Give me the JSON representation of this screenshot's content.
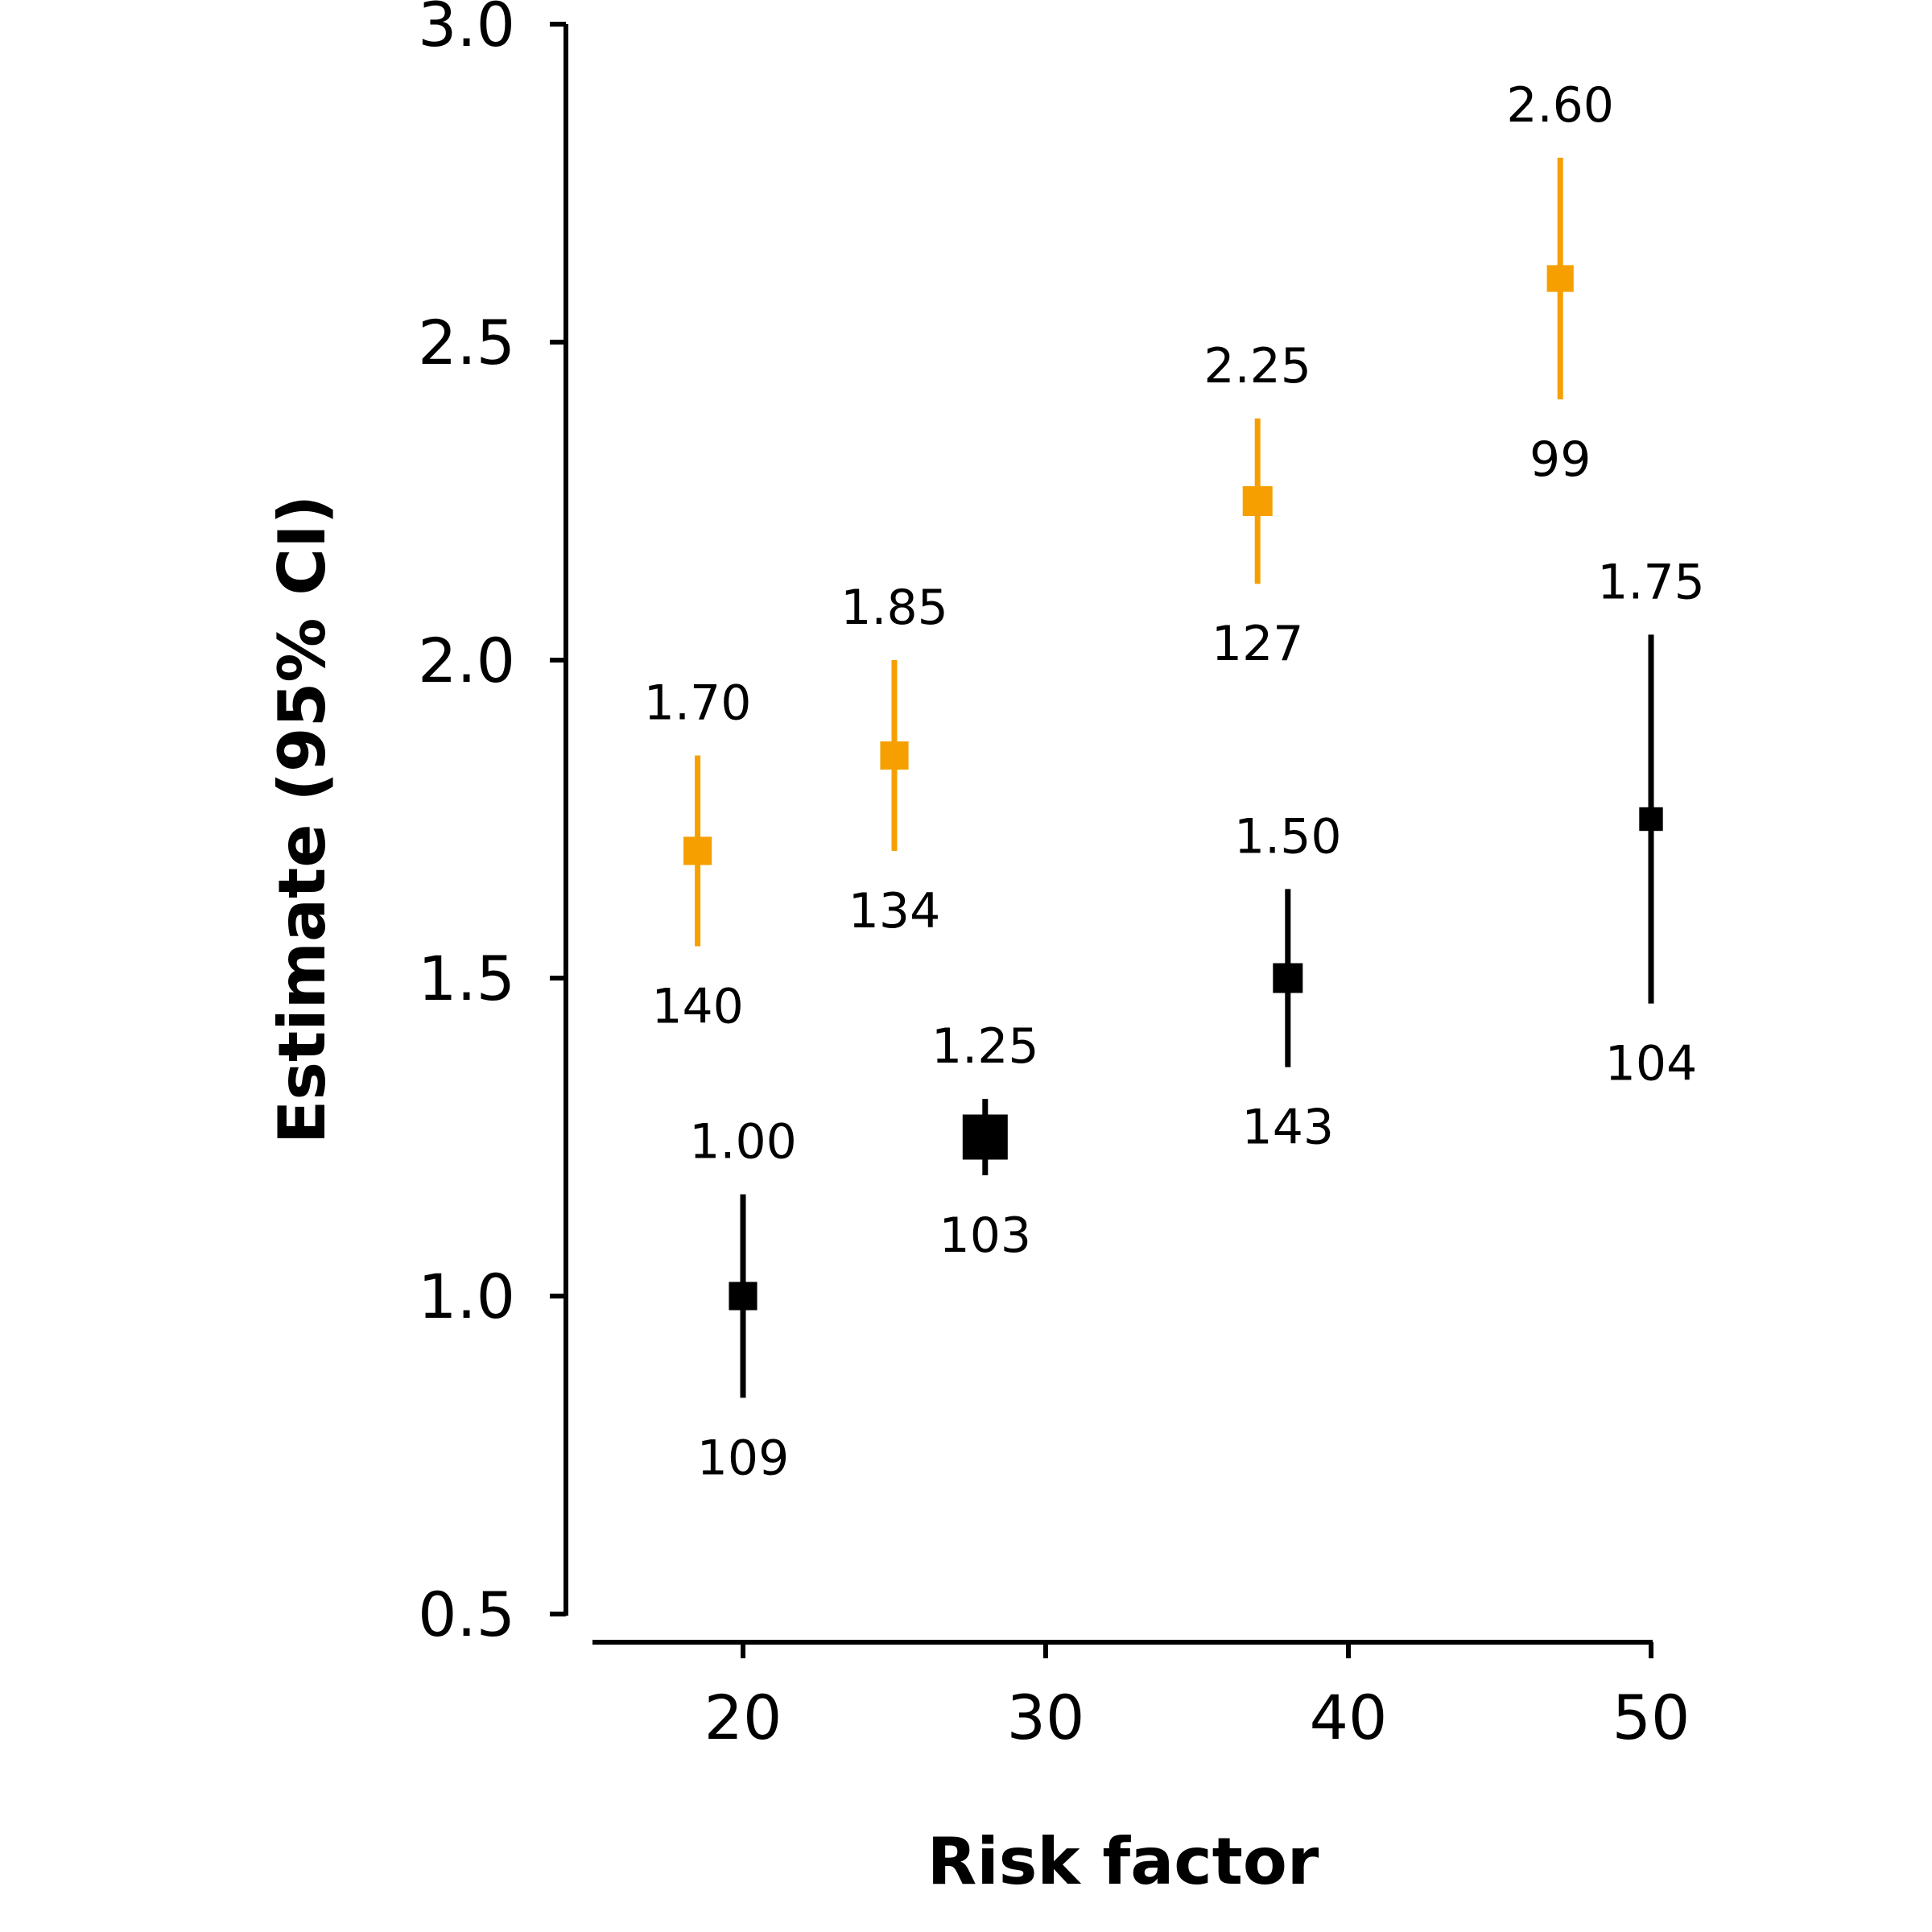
{
  "chart_data": {
    "type": "scatter",
    "xlabel": "Risk factor",
    "ylabel": "Estimate (95% CI)",
    "xlim": [
      15,
      50
    ],
    "ylim": [
      0.5,
      3.0
    ],
    "xticks": [
      20,
      30,
      40,
      50
    ],
    "yticks": [
      0.5,
      1.0,
      1.5,
      2.0,
      2.5,
      3.0
    ],
    "grid": false,
    "legend": "none",
    "series": [
      {
        "color": "#000000",
        "points": [
          {
            "x": 20,
            "estimate": 1.0,
            "lower": 0.84,
            "upper": 1.16,
            "label": "1.00",
            "n": "109",
            "weight": 0.45
          },
          {
            "x": 28,
            "estimate": 1.25,
            "lower": 1.19,
            "upper": 1.31,
            "label": "1.25",
            "n": "103",
            "weight": 1.0
          },
          {
            "x": 38,
            "estimate": 1.5,
            "lower": 1.36,
            "upper": 1.64,
            "label": "1.50",
            "n": "143",
            "weight": 0.5
          },
          {
            "x": 50,
            "estimate": 1.75,
            "lower": 1.46,
            "upper": 2.04,
            "label": "1.75",
            "n": "104",
            "weight": 0.3
          }
        ]
      },
      {
        "color": "#f5a000",
        "points": [
          {
            "x": 18.5,
            "estimate": 1.7,
            "lower": 1.55,
            "upper": 1.85,
            "label": "1.70",
            "n": "140",
            "weight": 0.45
          },
          {
            "x": 25,
            "estimate": 1.85,
            "lower": 1.7,
            "upper": 2.0,
            "label": "1.85",
            "n": "134",
            "weight": 0.45
          },
          {
            "x": 37,
            "estimate": 2.25,
            "lower": 2.12,
            "upper": 2.38,
            "label": "2.25",
            "n": "127",
            "weight": 0.5
          },
          {
            "x": 47,
            "estimate": 2.6,
            "lower": 2.41,
            "upper": 2.79,
            "label": "2.60",
            "n": "99",
            "weight": 0.4
          }
        ]
      }
    ]
  }
}
